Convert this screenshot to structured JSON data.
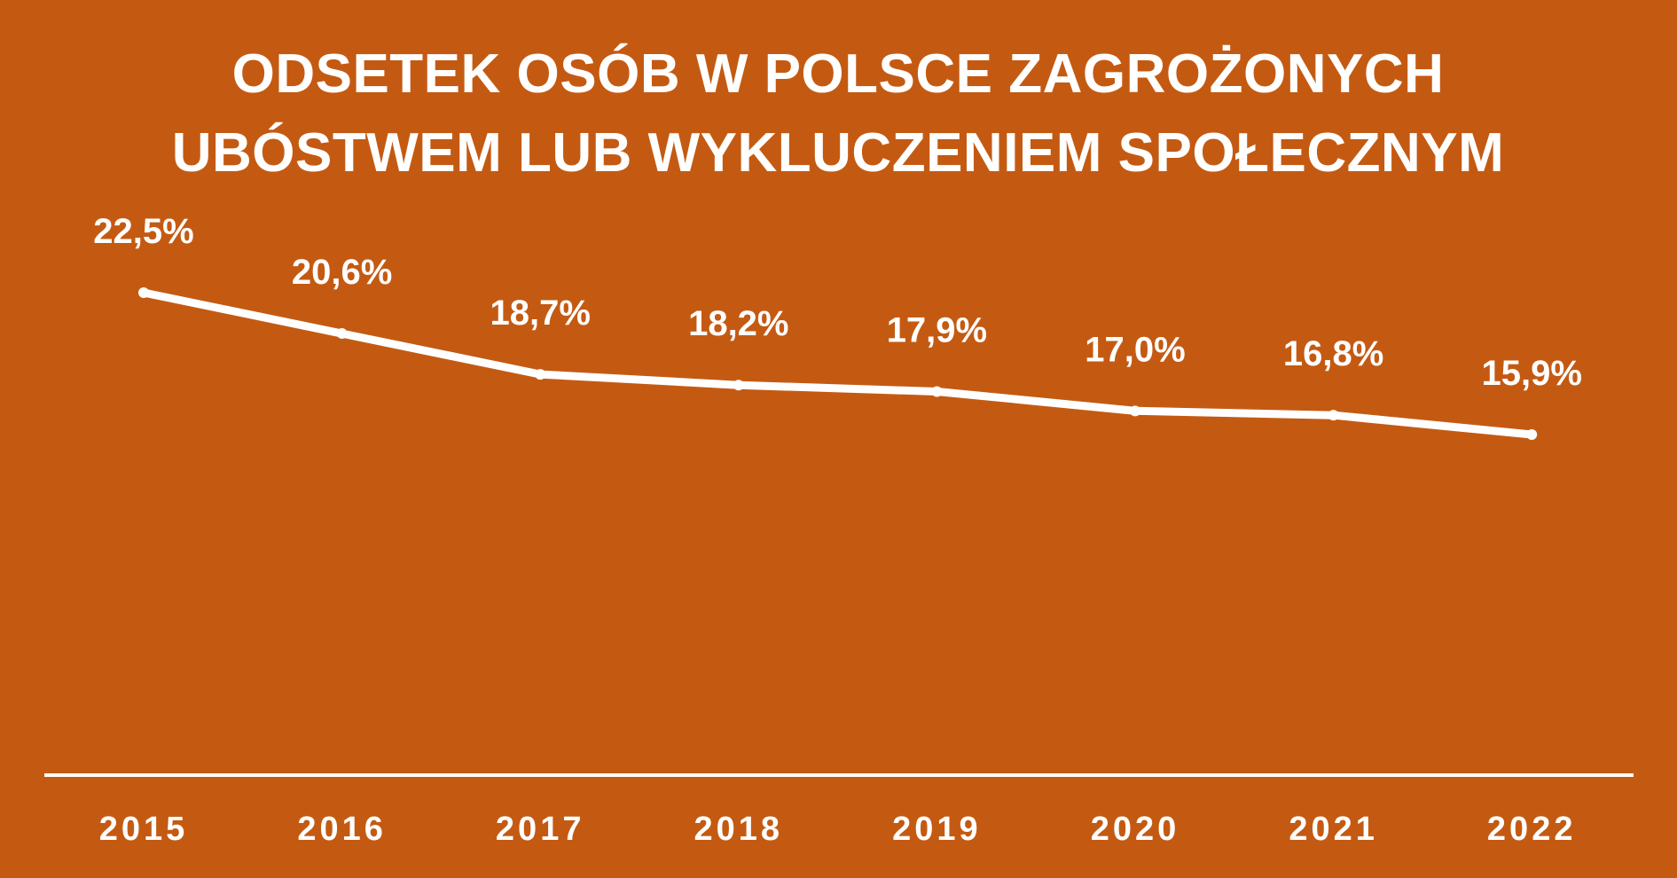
{
  "colors": {
    "background": "#C45A12",
    "foreground": "#FFFFFF"
  },
  "chart_data": {
    "type": "line",
    "title_lines": [
      "ODSETEK OSÓB W POLSCE ZAGROŻONYCH",
      "UBÓSTWEM LUB WYKLUCZENIEM SPOŁECZNYM"
    ],
    "categories": [
      "2015",
      "2016",
      "2017",
      "2018",
      "2019",
      "2020",
      "2021",
      "2022"
    ],
    "values": [
      22.5,
      20.6,
      18.7,
      18.2,
      17.9,
      17.0,
      16.8,
      15.9
    ],
    "value_labels": [
      "22,5%",
      "20,6%",
      "18,7%",
      "18,2%",
      "17,9%",
      "17,0%",
      "16,8%",
      "15,9%"
    ],
    "xlabel": "",
    "ylabel": "",
    "y_axis_visible": false,
    "grid": "vertical drop lines",
    "legend": "none"
  }
}
